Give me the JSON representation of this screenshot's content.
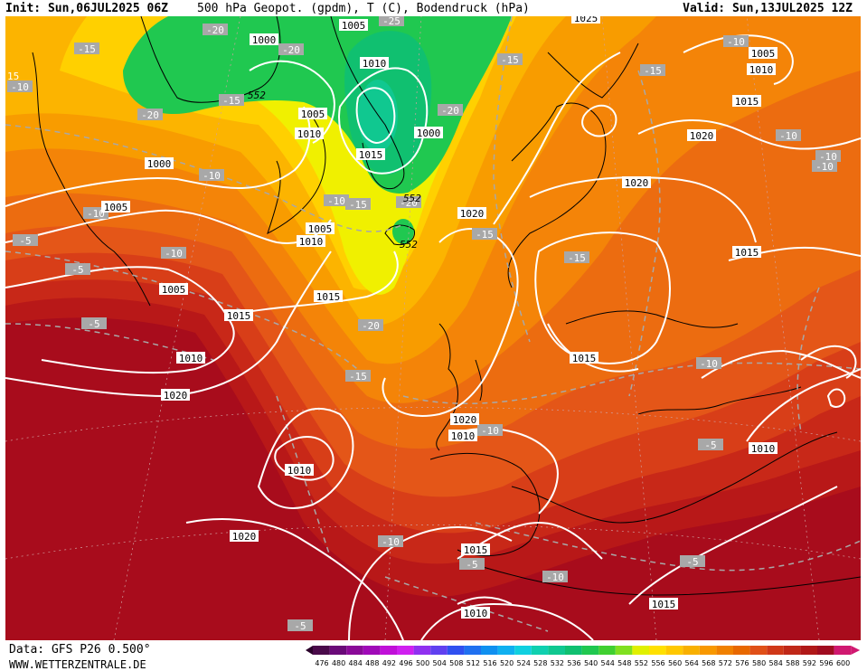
{
  "header": {
    "init": "Init: Sun,06JUL2025 06Z",
    "title": "500 hPa Geopot. (gpdm), T (C), Bodendruck (hPa)",
    "valid": "Valid: Sun,13JUL2025 12Z"
  },
  "footer": {
    "source": "Data: GFS P26 0.500°",
    "website": "WWW.WETTERZENTRALE.DE"
  },
  "scale": {
    "ticks": [
      "476",
      "480",
      "484",
      "488",
      "492",
      "496",
      "500",
      "504",
      "508",
      "512",
      "516",
      "520",
      "524",
      "528",
      "532",
      "536",
      "540",
      "544",
      "548",
      "552",
      "556",
      "560",
      "564",
      "568",
      "572",
      "576",
      "580",
      "584",
      "588",
      "592",
      "596",
      "600"
    ],
    "colors": [
      "#4a0a4a",
      "#6a0a78",
      "#8a0a98",
      "#a00ab8",
      "#c010d8",
      "#d020f0",
      "#9030f0",
      "#6040f0",
      "#3050f0",
      "#2070f0",
      "#1090f0",
      "#10b0f0",
      "#10d0e0",
      "#10d0b0",
      "#10c890",
      "#10c070",
      "#20c850",
      "#40d030",
      "#80e020",
      "#e0f000",
      "#ffe000",
      "#ffc800",
      "#f8b000",
      "#f89800",
      "#f08000",
      "#e86800",
      "#e05018",
      "#d03818",
      "#c02818",
      "#b01818",
      "#a00c20",
      "#d01870"
    ]
  },
  "pressure_labels": [
    {
      "text": "1005"
    },
    {
      "text": "1000"
    },
    {
      "text": "1010"
    },
    {
      "text": "1005"
    },
    {
      "text": "1010"
    },
    {
      "text": "1015"
    },
    {
      "text": "1000"
    },
    {
      "text": "1000"
    },
    {
      "text": "1005"
    },
    {
      "text": "1005"
    },
    {
      "text": "1010"
    },
    {
      "text": "1015"
    },
    {
      "text": "1010"
    },
    {
      "text": "1005"
    },
    {
      "text": "1020"
    },
    {
      "text": "1015"
    },
    {
      "text": "1020"
    },
    {
      "text": "1020"
    },
    {
      "text": "1015"
    },
    {
      "text": "1015"
    },
    {
      "text": "1010"
    },
    {
      "text": "1020"
    },
    {
      "text": "1020"
    },
    {
      "text": "1010"
    },
    {
      "text": "1015"
    },
    {
      "text": "1020"
    },
    {
      "text": "1015"
    },
    {
      "text": "1010"
    },
    {
      "text": "1015"
    },
    {
      "text": "1010"
    },
    {
      "text": "1005"
    },
    {
      "text": "1010"
    },
    {
      "text": "1025"
    }
  ],
  "temperature_labels": [
    {
      "text": "-20"
    },
    {
      "text": "-25"
    },
    {
      "text": "-15"
    },
    {
      "text": "-10"
    },
    {
      "text": "-20"
    },
    {
      "text": "-15"
    },
    {
      "text": "-20"
    },
    {
      "text": "-15"
    },
    {
      "text": "-10"
    },
    {
      "text": "-10"
    },
    {
      "text": "-15"
    },
    {
      "text": "-20"
    },
    {
      "text": "-15"
    },
    {
      "text": "-5"
    },
    {
      "text": "-10"
    },
    {
      "text": "-5"
    },
    {
      "text": "-5"
    },
    {
      "text": "-20"
    },
    {
      "text": "-15"
    },
    {
      "text": "-10"
    },
    {
      "text": "-10"
    },
    {
      "text": "-5"
    },
    {
      "text": "-10"
    },
    {
      "text": "-5"
    },
    {
      "text": "-5"
    },
    {
      "text": "-10"
    },
    {
      "text": "-10"
    },
    {
      "text": "-15"
    },
    {
      "text": "-10"
    },
    {
      "text": "-10"
    },
    {
      "text": "-10"
    },
    {
      "text": "-5"
    },
    {
      "text": "-15"
    },
    {
      "text": "-20"
    },
    {
      "text": "-10"
    }
  ],
  "geopotential_labels": [
    {
      "text": "552"
    },
    {
      "text": "552"
    },
    {
      "text": "552"
    }
  ],
  "edge_label": "15"
}
